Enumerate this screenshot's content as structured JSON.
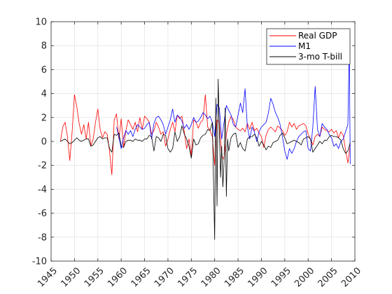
{
  "chart_data": {
    "type": "line",
    "title": "",
    "xlabel": "",
    "ylabel": "",
    "xlim": [
      1945,
      2010
    ],
    "ylim": [
      -10,
      10
    ],
    "xticks": [
      1945,
      1950,
      1955,
      1960,
      1965,
      1970,
      1975,
      1980,
      1985,
      1990,
      1995,
      2000,
      2005,
      2010
    ],
    "yticks": [
      -10,
      -8,
      -6,
      -4,
      -2,
      0,
      2,
      4,
      6,
      8,
      10
    ],
    "grid": true,
    "legend_position": "top-right",
    "series": [
      {
        "name": "Real GDP",
        "color": "#ff0000",
        "x": [
          1947.0,
          1947.5,
          1948.0,
          1948.5,
          1949.0,
          1949.5,
          1950.0,
          1950.5,
          1951.0,
          1951.5,
          1952.0,
          1952.5,
          1953.0,
          1953.5,
          1954.0,
          1954.5,
          1955.0,
          1955.5,
          1956.0,
          1956.5,
          1957.0,
          1957.5,
          1958.0,
          1958.5,
          1959.0,
          1959.5,
          1960.0,
          1960.5,
          1961.0,
          1961.5,
          1962.0,
          1962.5,
          1963.0,
          1963.5,
          1964.0,
          1964.5,
          1965.0,
          1965.5,
          1966.0,
          1966.5,
          1967.0,
          1967.5,
          1968.0,
          1968.5,
          1969.0,
          1969.5,
          1970.0,
          1970.5,
          1971.0,
          1971.5,
          1972.0,
          1972.5,
          1973.0,
          1973.5,
          1974.0,
          1974.5,
          1975.0,
          1975.5,
          1976.0,
          1976.5,
          1977.0,
          1977.5,
          1978.0,
          1978.5,
          1979.0,
          1979.5,
          1980.0,
          1980.5,
          1981.0,
          1981.5,
          1982.0,
          1982.5,
          1983.0,
          1983.5,
          1984.0,
          1984.5,
          1985.0,
          1985.5,
          1986.0,
          1986.5,
          1987.0,
          1987.5,
          1988.0,
          1988.5,
          1989.0,
          1989.5,
          1990.0,
          1990.5,
          1991.0,
          1991.5,
          1992.0,
          1992.5,
          1993.0,
          1993.5,
          1994.0,
          1994.5,
          1995.0,
          1995.5,
          1996.0,
          1996.5,
          1997.0,
          1997.5,
          1998.0,
          1998.5,
          1999.0,
          1999.5,
          2000.0,
          2000.5,
          2001.0,
          2001.5,
          2002.0,
          2002.5,
          2003.0,
          2003.5,
          2004.0,
          2004.5,
          2005.0,
          2005.5,
          2006.0,
          2006.5,
          2007.0,
          2007.5,
          2008.0,
          2008.5,
          2009.0
        ],
        "y": [
          0.0,
          1.2,
          1.6,
          0.4,
          -1.6,
          0.8,
          3.9,
          2.9,
          1.5,
          0.6,
          1.4,
          0.2,
          1.6,
          -0.4,
          0.2,
          1.6,
          2.7,
          1.0,
          0.3,
          0.8,
          0.6,
          -0.8,
          -2.8,
          1.8,
          2.3,
          0.2,
          1.9,
          -0.5,
          0.9,
          1.8,
          1.4,
          1.0,
          1.6,
          0.8,
          2.0,
          1.0,
          2.1,
          1.9,
          1.6,
          0.6,
          0.9,
          1.6,
          1.2,
          0.6,
          0.8,
          -0.4,
          0.2,
          1.0,
          1.6,
          0.8,
          2.2,
          1.9,
          2.1,
          0.8,
          -0.6,
          0.2,
          -1.2,
          1.8,
          1.6,
          1.1,
          1.6,
          1.8,
          3.9,
          1.2,
          0.9,
          0.4,
          -2.0,
          1.8,
          1.6,
          -1.2,
          -1.5,
          0.6,
          1.6,
          2.1,
          1.8,
          1.2,
          1.0,
          0.9,
          1.1,
          0.8,
          1.5,
          1.0,
          1.6,
          0.9,
          1.1,
          0.7,
          0.4,
          -0.5,
          0.5,
          1.0,
          1.2,
          1.0,
          0.8,
          1.3,
          1.1,
          0.9,
          0.5,
          0.8,
          1.6,
          1.2,
          1.5,
          1.0,
          1.3,
          1.4,
          1.5,
          1.3,
          0.6,
          0.2,
          -0.3,
          0.4,
          0.6,
          0.4,
          1.2,
          1.0,
          0.9,
          0.8,
          1.0,
          0.7,
          0.9,
          0.3,
          0.8,
          0.5,
          -0.7,
          -1.8,
          -0.3
        ]
      },
      {
        "name": "M1",
        "color": "#0000ff",
        "x": [
          1959.0,
          1959.5,
          1960.0,
          1960.5,
          1961.0,
          1961.5,
          1962.0,
          1962.5,
          1963.0,
          1963.5,
          1964.0,
          1964.5,
          1965.0,
          1965.5,
          1966.0,
          1966.5,
          1967.0,
          1967.5,
          1968.0,
          1968.5,
          1969.0,
          1969.5,
          1970.0,
          1970.5,
          1971.0,
          1971.5,
          1972.0,
          1972.5,
          1973.0,
          1973.5,
          1974.0,
          1974.5,
          1975.0,
          1975.5,
          1976.0,
          1976.5,
          1977.0,
          1977.5,
          1978.0,
          1978.5,
          1979.0,
          1979.5,
          1980.0,
          1980.5,
          1981.0,
          1981.5,
          1982.0,
          1982.5,
          1983.0,
          1983.5,
          1984.0,
          1984.5,
          1985.0,
          1985.5,
          1986.0,
          1986.5,
          1987.0,
          1987.5,
          1988.0,
          1988.5,
          1989.0,
          1989.5,
          1990.0,
          1990.5,
          1991.0,
          1991.5,
          1992.0,
          1992.5,
          1993.0,
          1993.5,
          1994.0,
          1994.5,
          1995.0,
          1995.5,
          1996.0,
          1996.5,
          1997.0,
          1997.5,
          1998.0,
          1998.5,
          1999.0,
          1999.5,
          2000.0,
          2000.5,
          2001.0,
          2001.5,
          2002.0,
          2002.5,
          2003.0,
          2003.5,
          2004.0,
          2004.5,
          2005.0,
          2005.5,
          2006.0,
          2006.5,
          2007.0,
          2007.5,
          2008.0,
          2008.5,
          2008.8,
          2009.0
        ],
        "y": [
          1.2,
          0.4,
          -0.6,
          0.3,
          0.9,
          0.6,
          0.9,
          0.4,
          1.0,
          1.4,
          1.2,
          1.0,
          1.1,
          1.4,
          1.6,
          0.2,
          1.5,
          2.0,
          2.1,
          1.8,
          1.4,
          0.6,
          1.2,
          1.8,
          2.7,
          1.6,
          2.2,
          2.0,
          1.7,
          1.1,
          1.4,
          1.0,
          1.4,
          2.0,
          1.6,
          1.7,
          2.0,
          2.4,
          2.2,
          1.9,
          2.1,
          1.6,
          0.4,
          3.1,
          2.8,
          0.2,
          1.6,
          3.0,
          2.6,
          2.2,
          1.4,
          1.2,
          2.2,
          3.2,
          2.4,
          4.4,
          1.2,
          0.2,
          1.2,
          0.8,
          0.0,
          0.8,
          1.2,
          1.4,
          1.6,
          2.4,
          3.6,
          3.1,
          2.4,
          2.0,
          1.4,
          0.4,
          -0.8,
          -1.5,
          -0.6,
          -1.0,
          -0.6,
          0.0,
          0.4,
          0.6,
          0.8,
          0.9,
          -0.6,
          -0.8,
          1.2,
          4.6,
          1.0,
          0.4,
          1.5,
          1.2,
          1.0,
          0.6,
          0.3,
          -0.4,
          -0.2,
          -0.6,
          0.0,
          0.2,
          0.8,
          1.4,
          8.3,
          -1.9
        ]
      },
      {
        "name": "3-mo T-bill",
        "color": "#000000",
        "x": [
          1947.0,
          1947.5,
          1948.0,
          1948.5,
          1949.0,
          1949.5,
          1950.0,
          1950.5,
          1951.0,
          1951.5,
          1952.0,
          1952.5,
          1953.0,
          1953.5,
          1954.0,
          1954.5,
          1955.0,
          1955.5,
          1956.0,
          1956.5,
          1957.0,
          1957.5,
          1958.0,
          1958.5,
          1959.0,
          1959.5,
          1960.0,
          1960.5,
          1961.0,
          1961.5,
          1962.0,
          1962.5,
          1963.0,
          1963.5,
          1964.0,
          1964.5,
          1965.0,
          1965.5,
          1966.0,
          1966.5,
          1967.0,
          1967.5,
          1968.0,
          1968.5,
          1969.0,
          1969.5,
          1970.0,
          1970.5,
          1971.0,
          1971.5,
          1972.0,
          1972.5,
          1973.0,
          1973.5,
          1974.0,
          1974.5,
          1975.0,
          1975.5,
          1976.0,
          1976.5,
          1977.0,
          1977.5,
          1978.0,
          1978.5,
          1979.0,
          1979.5,
          1980.0,
          1980.25,
          1980.5,
          1980.75,
          1981.0,
          1981.25,
          1981.5,
          1981.75,
          1982.0,
          1982.25,
          1982.5,
          1982.75,
          1983.0,
          1983.5,
          1984.0,
          1984.5,
          1985.0,
          1985.5,
          1986.0,
          1986.5,
          1987.0,
          1987.5,
          1988.0,
          1988.5,
          1989.0,
          1989.5,
          1990.0,
          1990.5,
          1991.0,
          1991.5,
          1992.0,
          1992.5,
          1993.0,
          1993.5,
          1994.0,
          1994.5,
          1995.0,
          1995.5,
          1996.0,
          1996.5,
          1997.0,
          1997.5,
          1998.0,
          1998.5,
          1999.0,
          1999.5,
          2000.0,
          2000.5,
          2001.0,
          2001.5,
          2002.0,
          2002.5,
          2003.0,
          2003.5,
          2004.0,
          2004.5,
          2005.0,
          2005.5,
          2006.0,
          2006.5,
          2007.0,
          2007.5,
          2008.0,
          2008.5,
          2009.0
        ],
        "y": [
          0.0,
          0.1,
          0.2,
          0.0,
          -0.2,
          -0.1,
          0.1,
          0.3,
          0.1,
          0.0,
          0.1,
          0.2,
          0.2,
          -0.4,
          -0.3,
          0.0,
          0.3,
          0.4,
          0.2,
          0.3,
          0.3,
          -0.6,
          -0.9,
          0.6,
          0.5,
          0.7,
          -0.4,
          -0.5,
          0.0,
          0.1,
          0.1,
          0.0,
          0.2,
          0.1,
          0.1,
          0.0,
          0.2,
          0.2,
          0.5,
          0.4,
          -0.8,
          0.4,
          0.3,
          0.0,
          0.6,
          0.5,
          -0.6,
          -0.9,
          -0.6,
          0.8,
          0.0,
          0.4,
          1.3,
          0.6,
          0.2,
          -0.4,
          -1.4,
          0.2,
          -0.3,
          -0.2,
          0.3,
          0.5,
          0.6,
          1.0,
          0.9,
          1.6,
          -8.2,
          3.6,
          -5.4,
          5.2,
          1.0,
          -3.0,
          -0.4,
          -3.8,
          -1.8,
          2.8,
          -4.6,
          0.2,
          -0.8,
          0.3,
          0.6,
          0.7,
          -0.5,
          -0.1,
          -0.6,
          -0.8,
          0.2,
          0.4,
          0.4,
          0.6,
          0.3,
          -0.4,
          0.0,
          -0.3,
          -0.7,
          -0.4,
          -0.5,
          -0.1,
          0.0,
          0.1,
          0.5,
          0.7,
          0.3,
          -0.2,
          -0.1,
          0.0,
          0.1,
          0.0,
          -0.1,
          -0.3,
          0.2,
          0.3,
          0.4,
          0.2,
          -0.9,
          -0.6,
          -0.3,
          0.0,
          -0.2,
          0.1,
          0.1,
          0.4,
          0.5,
          0.4,
          0.4,
          0.3,
          0.1,
          -0.6,
          -1.0,
          -0.8,
          -0.1
        ]
      }
    ]
  }
}
